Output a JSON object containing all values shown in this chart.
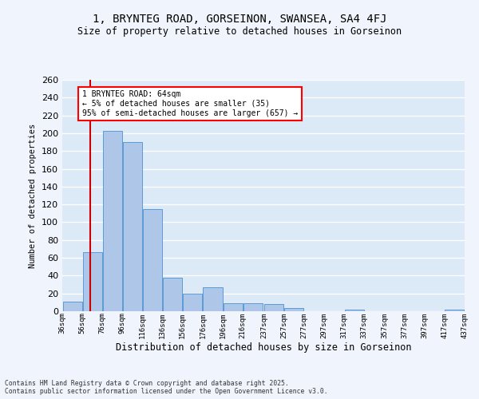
{
  "title1": "1, BRYNTEG ROAD, GORSEINON, SWANSEA, SA4 4FJ",
  "title2": "Size of property relative to detached houses in Gorseinon",
  "xlabel": "Distribution of detached houses by size in Gorseinon",
  "ylabel": "Number of detached properties",
  "footnote1": "Contains HM Land Registry data © Crown copyright and database right 2025.",
  "footnote2": "Contains public sector information licensed under the Open Government Licence v3.0.",
  "bar_color": "#aec6e8",
  "bar_edge_color": "#5b9bd5",
  "vline_color": "#cc0000",
  "vline_x": 64,
  "annotation_text": "1 BRYNTEG ROAD: 64sqm\n← 5% of detached houses are smaller (35)\n95% of semi-detached houses are larger (657) →",
  "bins_left": [
    36,
    56,
    76,
    96,
    116,
    136,
    156,
    176,
    196,
    216,
    237,
    257,
    277,
    297,
    317,
    337,
    357,
    377,
    397,
    417
  ],
  "bin_width": 20,
  "counts": [
    11,
    66,
    203,
    190,
    115,
    38,
    20,
    27,
    9,
    9,
    8,
    4,
    0,
    0,
    2,
    0,
    0,
    0,
    0,
    2
  ],
  "ylim": [
    0,
    260
  ],
  "xlim": [
    36,
    437
  ],
  "tick_labels": [
    "36sqm",
    "56sqm",
    "76sqm",
    "96sqm",
    "116sqm",
    "136sqm",
    "156sqm",
    "176sqm",
    "196sqm",
    "216sqm",
    "237sqm",
    "257sqm",
    "277sqm",
    "297sqm",
    "317sqm",
    "337sqm",
    "357sqm",
    "377sqm",
    "397sqm",
    "417sqm",
    "437sqm"
  ],
  "tick_positions": [
    36,
    56,
    76,
    96,
    116,
    136,
    156,
    176,
    196,
    216,
    237,
    257,
    277,
    297,
    317,
    337,
    357,
    377,
    397,
    417,
    437
  ],
  "background_color": "#dce9f7",
  "fig_background": "#f0f4fc",
  "grid_color": "#ffffff"
}
